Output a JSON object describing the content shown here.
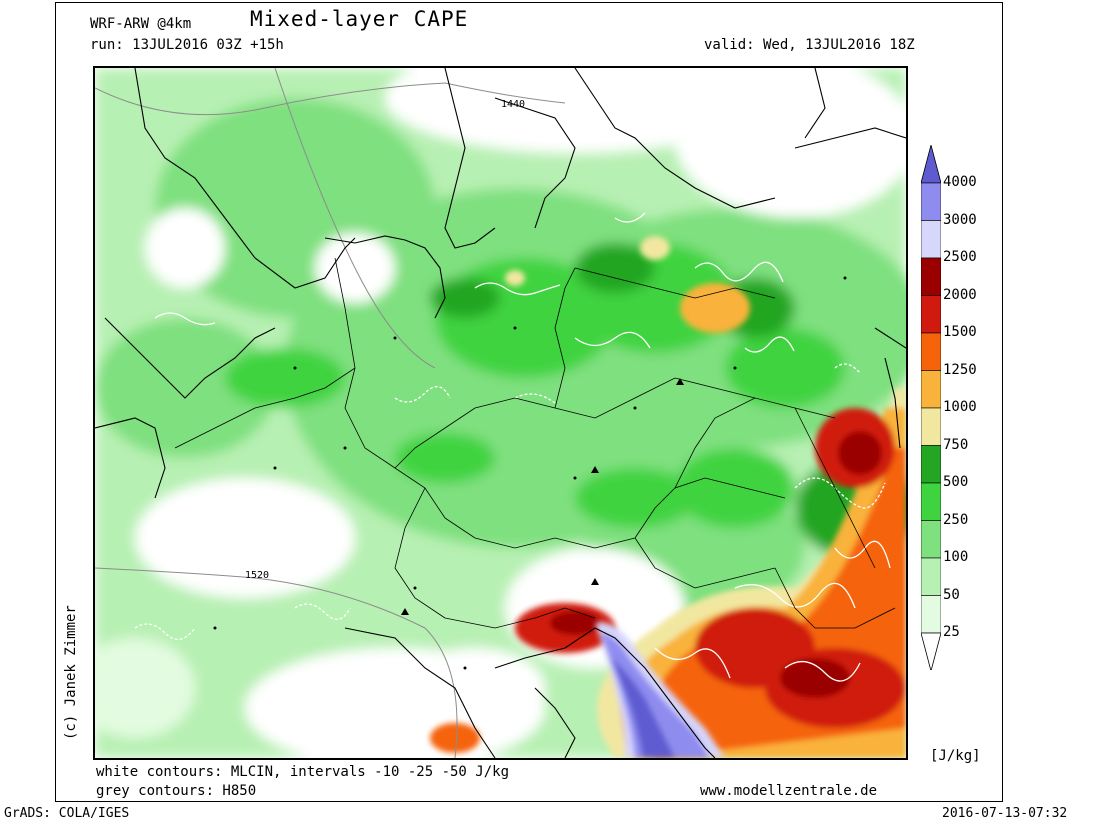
{
  "header": {
    "model": "WRF-ARW @4km",
    "title": "Mixed-layer CAPE",
    "run": "run: 13JUL2016 03Z +15h",
    "valid": "valid: Wed, 13JUL2016 18Z"
  },
  "footer": {
    "white_contours": "white contours: MLCIN, intervals -10 -25 -50 J/kg",
    "grey_contours": "grey contours: H850",
    "website": "www.modellzentrale.de",
    "grads": "GrADS: COLA/IGES",
    "timestamp": "2016-07-13-07:32"
  },
  "copyright": "(c) Janek Zimmer",
  "map": {
    "contour_labels": [
      "1440",
      "1520"
    ]
  },
  "colorbar": {
    "unit": "[J/kg]",
    "levels": [
      {
        "label": "4000",
        "color": "#5e5bd1"
      },
      {
        "label": "3000",
        "color": "#8f8cf0"
      },
      {
        "label": "2500",
        "color": "#d7d6fb"
      },
      {
        "label": "2000",
        "color": "#9b0000"
      },
      {
        "label": "1500",
        "color": "#d01a10"
      },
      {
        "label": "1250",
        "color": "#f5630a"
      },
      {
        "label": "1000",
        "color": "#f9b23a"
      },
      {
        "label": "750",
        "color": "#f2e7a0"
      },
      {
        "label": "500",
        "color": "#24a624"
      },
      {
        "label": "250",
        "color": "#3fd33f"
      },
      {
        "label": "100",
        "color": "#7fe07f"
      },
      {
        "label": "50",
        "color": "#b7f0b3"
      },
      {
        "label": "25",
        "color": "#e3fbe0"
      }
    ]
  }
}
